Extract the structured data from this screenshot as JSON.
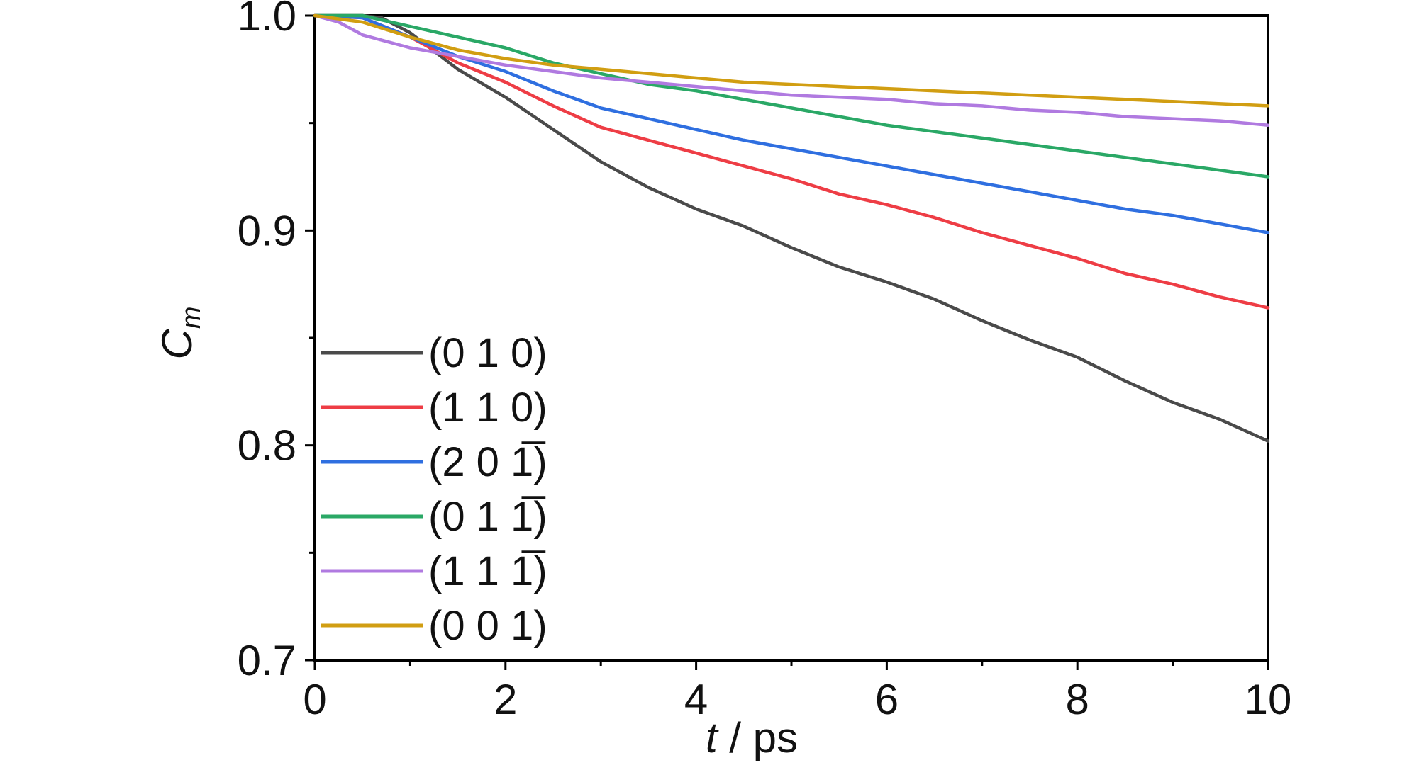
{
  "chart_data": {
    "type": "line",
    "title": "",
    "xlabel": {
      "italic": "t",
      "rest": " / ps"
    },
    "ylabel": {
      "main": "C",
      "sub": "m"
    },
    "xlim": [
      0,
      10
    ],
    "ylim": [
      0.7,
      1.0
    ],
    "xticks": [
      0,
      2,
      4,
      6,
      8,
      10
    ],
    "xtick_labels": [
      "0",
      "2",
      "4",
      "6",
      "8",
      "10"
    ],
    "yticks": [
      0.7,
      0.8,
      0.9,
      1.0
    ],
    "ytick_labels": [
      "0.7",
      "0.8",
      "0.9",
      "1.0"
    ],
    "grid": false,
    "legend_position": "bottom-left",
    "series": [
      {
        "name": "(0 1 0)",
        "color": "#4a4a4a",
        "x": [
          0,
          0.5,
          0.7,
          1,
          1.5,
          2,
          2.5,
          3,
          3.5,
          4,
          4.5,
          5,
          5.5,
          6,
          6.5,
          7,
          7.5,
          8,
          8.5,
          9,
          9.5,
          10
        ],
        "y": [
          1.0,
          1.0,
          0.999,
          0.992,
          0.975,
          0.962,
          0.947,
          0.932,
          0.92,
          0.91,
          0.902,
          0.892,
          0.883,
          0.876,
          0.868,
          0.858,
          0.849,
          0.841,
          0.83,
          0.82,
          0.812,
          0.802
        ]
      },
      {
        "name": "(1 1 0)",
        "color": "#ee3d45",
        "x": [
          0,
          0.5,
          1,
          1.5,
          2,
          2.5,
          3,
          3.5,
          4,
          4.5,
          5,
          5.5,
          6,
          6.5,
          7,
          7.5,
          8,
          8.5,
          9,
          9.5,
          10
        ],
        "y": [
          1.0,
          0.999,
          0.99,
          0.978,
          0.969,
          0.958,
          0.948,
          0.942,
          0.936,
          0.93,
          0.924,
          0.917,
          0.912,
          0.906,
          0.899,
          0.893,
          0.887,
          0.88,
          0.875,
          0.869,
          0.864
        ]
      },
      {
        "name": "(2 0 1̅)",
        "color": "#2f6fe0",
        "x": [
          0,
          0.5,
          1,
          1.5,
          2,
          2.5,
          3,
          3.5,
          4,
          4.5,
          5,
          5.5,
          6,
          6.5,
          7,
          7.5,
          8,
          8.5,
          9,
          9.5,
          10
        ],
        "y": [
          1.0,
          0.999,
          0.99,
          0.981,
          0.974,
          0.965,
          0.957,
          0.952,
          0.947,
          0.942,
          0.938,
          0.934,
          0.93,
          0.926,
          0.922,
          0.918,
          0.914,
          0.91,
          0.907,
          0.903,
          0.899
        ]
      },
      {
        "name": "(0 1 1̅)",
        "color": "#2aa866",
        "x": [
          0,
          0.5,
          1,
          1.5,
          2,
          2.5,
          3,
          3.5,
          4,
          4.5,
          5,
          5.5,
          6,
          6.5,
          7,
          7.5,
          8,
          8.5,
          9,
          9.5,
          10
        ],
        "y": [
          1.0,
          1.0,
          0.995,
          0.99,
          0.985,
          0.978,
          0.973,
          0.968,
          0.965,
          0.961,
          0.957,
          0.953,
          0.949,
          0.946,
          0.943,
          0.94,
          0.937,
          0.934,
          0.931,
          0.928,
          0.925
        ]
      },
      {
        "name": "(1 1 1̅)",
        "color": "#b07ae0",
        "x": [
          0,
          0.25,
          0.5,
          1,
          1.5,
          2,
          2.5,
          3,
          3.5,
          4,
          4.5,
          5,
          5.5,
          6,
          6.5,
          7,
          7.5,
          8,
          8.5,
          9,
          9.5,
          10
        ],
        "y": [
          1.0,
          0.997,
          0.991,
          0.985,
          0.981,
          0.977,
          0.974,
          0.971,
          0.969,
          0.967,
          0.965,
          0.963,
          0.962,
          0.961,
          0.959,
          0.958,
          0.956,
          0.955,
          0.953,
          0.952,
          0.951,
          0.949
        ]
      },
      {
        "name": "(0 0 1)",
        "color": "#d19e12",
        "x": [
          0,
          0.5,
          1,
          1.5,
          2,
          2.5,
          3,
          3.5,
          4,
          4.5,
          5,
          5.5,
          6,
          6.5,
          7,
          7.5,
          8,
          8.5,
          9,
          9.5,
          10
        ],
        "y": [
          1.0,
          0.997,
          0.99,
          0.984,
          0.98,
          0.977,
          0.975,
          0.973,
          0.971,
          0.969,
          0.968,
          0.967,
          0.966,
          0.965,
          0.964,
          0.963,
          0.962,
          0.961,
          0.96,
          0.959,
          0.958
        ]
      }
    ]
  }
}
